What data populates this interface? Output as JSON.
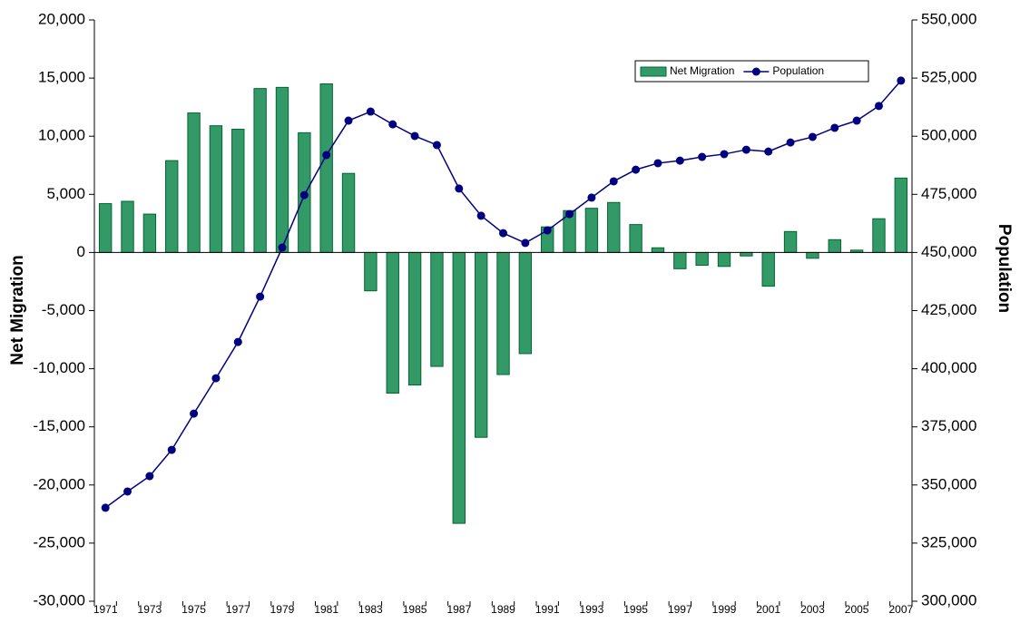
{
  "chart_data": {
    "type": "bar-line",
    "categories": [
      "1971",
      null,
      "1973",
      null,
      "1975",
      null,
      "1977",
      null,
      "1979",
      null,
      "1981",
      null,
      "1983",
      null,
      "1985",
      null,
      "1987",
      null,
      "1989",
      null,
      "1991",
      null,
      "1993",
      null,
      "1995",
      null,
      "1997",
      null,
      "1999",
      null,
      "2001",
      null,
      "2003",
      null,
      "2005",
      null,
      "2007"
    ],
    "y_label": "Net Migration",
    "y2_label": "Population",
    "series": [
      {
        "name": "Net Migration",
        "type": "bar",
        "color": "#339966",
        "values": [
          4200,
          4400,
          3300,
          7900,
          12000,
          10900,
          10600,
          14100,
          14200,
          10300,
          14500,
          6800,
          -3300,
          -12100,
          -11400,
          -9800,
          -23300,
          -15900,
          -10500,
          -8700,
          2200,
          3600,
          3800,
          4300,
          2400,
          400,
          -1400,
          -1100,
          -1200,
          -300,
          -2900,
          1800,
          -500,
          1100,
          200,
          2900,
          6400
        ]
      },
      {
        "name": "Population",
        "type": "line",
        "axis": "y2",
        "color": "#000080",
        "values": [
          340200,
          347200,
          353800,
          365100,
          380700,
          395900,
          411500,
          431000,
          452100,
          474700,
          491900,
          506700,
          510600,
          505100,
          500100,
          496200,
          477500,
          465800,
          458300,
          454100,
          459500,
          466500,
          473600,
          480600,
          485600,
          488400,
          489500,
          491100,
          492300,
          494200,
          493400,
          497300,
          499700,
          503600,
          506700,
          513000,
          523900
        ]
      }
    ],
    "ylim": [
      -30000,
      20000
    ],
    "yticks": [
      {
        "value": -30000,
        "label": "-30,000"
      },
      {
        "value": -25000,
        "label": "-25,000"
      },
      {
        "value": -20000,
        "label": "-20,000"
      },
      {
        "value": -15000,
        "label": "-15,000"
      },
      {
        "value": -10000,
        "label": "-10,000"
      },
      {
        "value": -5000,
        "label": "-5,000"
      },
      0,
      {
        "value": 5000,
        "label": "5,000"
      },
      {
        "value": 10000,
        "label": "10,000"
      },
      {
        "value": 15000,
        "label": "15,000"
      },
      {
        "value": 20000,
        "label": "20,000"
      }
    ],
    "y2lim": [
      300000,
      550000
    ],
    "y2ticks": [
      {
        "value": 300000,
        "label": "300,000"
      },
      {
        "value": 325000,
        "label": "325,000"
      },
      {
        "value": 350000,
        "label": "350,000"
      },
      {
        "value": 375000,
        "label": "375,000"
      },
      {
        "value": 400000,
        "label": "400,000"
      },
      {
        "value": 425000,
        "label": "425,000"
      },
      {
        "value": 450000,
        "label": "450,000"
      },
      {
        "value": 475000,
        "label": "475,000"
      },
      {
        "value": 500000,
        "label": "500,000"
      },
      {
        "value": 525000,
        "label": "525,000"
      },
      {
        "value": 550000,
        "label": "550,000"
      }
    ],
    "legend": "top-right"
  }
}
